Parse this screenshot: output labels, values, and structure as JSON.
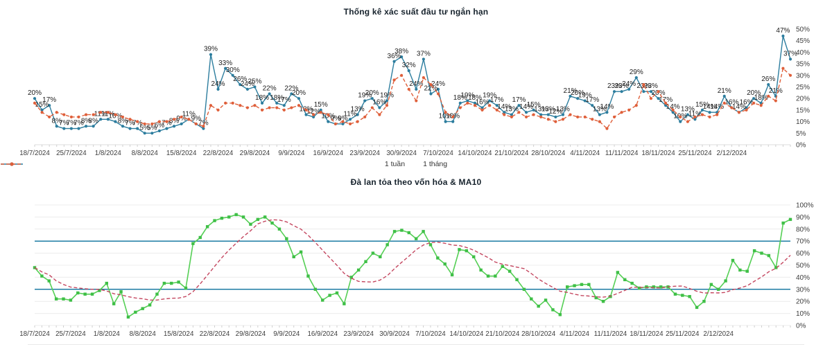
{
  "page": {
    "background": "#ffffff"
  },
  "chart_data": [
    {
      "id": "top",
      "type": "line",
      "title": "Thống kê xác suất đầu tư ngắn hạn",
      "ylabel": "",
      "xlabel": "",
      "ylim": [
        0,
        50
      ],
      "ystep": 5,
      "y_unit": "%",
      "y_axis_side": "right",
      "grid": "baseline-only",
      "legend_position": "bottom-center",
      "x_tick_labels": [
        "18/7/2024",
        "25/7/2024",
        "1/8/2024",
        "8/8/2024",
        "15/8/2024",
        "22/8/2024",
        "29/8/2024",
        "9/9/2024",
        "16/9/2024",
        "23/9/2024",
        "30/9/2024",
        "7/10/2024",
        "14/10/2024",
        "21/10/2024",
        "28/10/2024",
        "4/11/2024",
        "11/11/2024",
        "18/11/2024",
        "25/11/2024",
        "2/12/2024"
      ],
      "points_per_tick": 5,
      "series": [
        {
          "name": "1 tuần",
          "color": "#2c7d9e",
          "line_style": "solid",
          "marker": "circle",
          "point_labels": true,
          "values": [
            20,
            15,
            17,
            8,
            7,
            7,
            7,
            8,
            8,
            11,
            11,
            10,
            8,
            7,
            7,
            5,
            5,
            6,
            7,
            8,
            9,
            11,
            9,
            7,
            39,
            24,
            33,
            30,
            26,
            24,
            25,
            18,
            22,
            18,
            17,
            22,
            20,
            13,
            12,
            15,
            10,
            9,
            9,
            11,
            13,
            19,
            20,
            16,
            19,
            36,
            38,
            32,
            24,
            37,
            22,
            24,
            10,
            10,
            18,
            19,
            18,
            16,
            19,
            17,
            14,
            13,
            17,
            14,
            15,
            13,
            13,
            12,
            13,
            21,
            20,
            19,
            17,
            13,
            14,
            23,
            23,
            24,
            29,
            23,
            23,
            20,
            17,
            14,
            10,
            13,
            11,
            15,
            14,
            14,
            21,
            16,
            14,
            16,
            20,
            18,
            26,
            21,
            47,
            37
          ]
        },
        {
          "name": "1 tháng",
          "color": "#df5f3a",
          "line_style": "dashed",
          "marker": "circle",
          "point_labels": false,
          "values": [
            18,
            14,
            12,
            14,
            13,
            12,
            12,
            13,
            13,
            14,
            14,
            13,
            12,
            11,
            10,
            9,
            9,
            10,
            10,
            11,
            12,
            11,
            9,
            8,
            17,
            15,
            18,
            18,
            17,
            16,
            17,
            15,
            16,
            16,
            15,
            16,
            17,
            15,
            13,
            14,
            13,
            9,
            10,
            9,
            10,
            12,
            16,
            13,
            17,
            28,
            30,
            24,
            19,
            29,
            26,
            22,
            14,
            12,
            16,
            18,
            17,
            15,
            17,
            15,
            13,
            12,
            14,
            12,
            13,
            12,
            11,
            10,
            11,
            13,
            12,
            12,
            11,
            10,
            7,
            12,
            14,
            15,
            17,
            26,
            20,
            23,
            18,
            15,
            12,
            10,
            12,
            13,
            12,
            13,
            18,
            16,
            14,
            15,
            18,
            17,
            21,
            19,
            33,
            30
          ]
        }
      ]
    },
    {
      "id": "bottom",
      "type": "line",
      "title": "Đà lan tỏa theo vốn hóa & MA10",
      "ylabel": "",
      "xlabel": "",
      "ylim": [
        0,
        100
      ],
      "ystep": 10,
      "y_unit": "%",
      "y_axis_side": "right",
      "grid": "horizontal",
      "reference_lines": [
        {
          "value": 30,
          "color": "#1c7ba3"
        },
        {
          "value": 70,
          "color": "#1c7ba3"
        }
      ],
      "x_tick_labels": [
        "18/7/2024",
        "25/7/2024",
        "1/8/2024",
        "8/8/2024",
        "15/8/2024",
        "22/8/2024",
        "29/8/2024",
        "9/9/2024",
        "16/9/2024",
        "23/9/2024",
        "30/9/2024",
        "7/10/2024",
        "14/10/2024",
        "21/10/2024",
        "28/10/2024",
        "4/11/2024",
        "11/11/2024",
        "18/11/2024",
        "25/11/2024",
        "2/12/2024"
      ],
      "points_per_tick": 5,
      "series": [
        {
          "name": "Đà lan tỏa",
          "color": "#55cf55",
          "marker_color": "#3fbf47",
          "line_style": "solid",
          "marker": "square",
          "point_labels": false,
          "values": [
            48,
            41,
            37,
            22,
            22,
            21,
            27,
            26,
            26,
            29,
            35,
            18,
            28,
            7,
            11,
            14,
            17,
            26,
            35,
            35,
            36,
            31,
            68,
            73,
            82,
            87,
            89,
            90,
            92,
            90,
            84,
            88,
            90,
            85,
            80,
            72,
            57,
            61,
            41,
            30,
            21,
            25,
            27,
            18,
            40,
            46,
            53,
            60,
            57,
            67,
            78,
            79,
            77,
            72,
            78,
            67,
            56,
            51,
            42,
            63,
            62,
            57,
            46,
            41,
            41,
            49,
            45,
            38,
            30,
            22,
            16,
            21,
            13,
            9,
            32,
            33,
            34,
            34,
            23,
            20,
            24,
            44,
            38,
            35,
            31,
            32,
            32,
            32,
            32,
            26,
            25,
            24,
            15,
            20,
            34,
            30,
            37,
            54,
            46,
            45,
            62,
            60,
            58,
            48,
            85,
            88
          ]
        },
        {
          "name": "MA10",
          "color": "#c4465f",
          "line_style": "dashed",
          "marker": "none",
          "point_labels": false,
          "derived": "ma10_of_previous_series"
        }
      ]
    }
  ],
  "legend": {
    "items": [
      {
        "label": "1 tuần",
        "color": "#2c7d9e",
        "style": "solid"
      },
      {
        "label": "1 tháng",
        "color": "#df5f3a",
        "style": "dashed"
      }
    ]
  },
  "colors": {
    "week_line": "#2c7d9e",
    "month_line": "#df5f3a",
    "spread_line": "#55cf55",
    "ma10_line": "#c4465f",
    "reference_line": "#1c7ba3",
    "gridline": "#ececec",
    "axis_text": "#3d3d3d",
    "point_label_text": "#1c1c1c",
    "title_text": "#16222c"
  }
}
